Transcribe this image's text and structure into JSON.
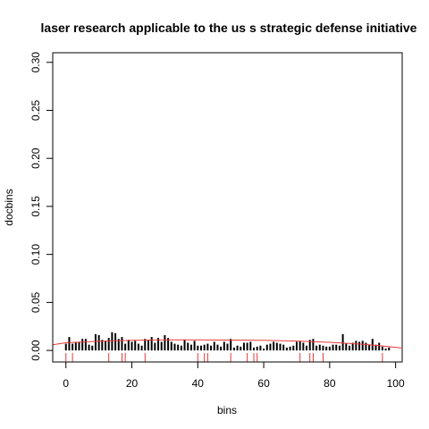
{
  "chart_data": {
    "type": "bar",
    "title": "laser research applicable to the us s strategic defense initiative",
    "xlabel": "bins",
    "ylabel": "docbins",
    "xlim": [
      -4,
      102
    ],
    "ylim": [
      -0.012,
      0.31
    ],
    "x_ticks": [
      0,
      20,
      40,
      60,
      80,
      100
    ],
    "y_ticks": [
      0.0,
      0.05,
      0.1,
      0.15,
      0.2,
      0.25,
      0.3
    ],
    "x_tick_labels": [
      "0",
      "20",
      "40",
      "60",
      "80",
      "100"
    ],
    "y_tick_labels": [
      "0.00",
      "0.05",
      "0.10",
      "0.15",
      "0.20",
      "0.25",
      "0.30"
    ],
    "series": [
      {
        "style": "histogram-bars",
        "color": "#000000",
        "x": [
          0,
          1,
          2,
          3,
          4,
          5,
          6,
          7,
          8,
          9,
          10,
          11,
          12,
          13,
          14,
          15,
          16,
          17,
          18,
          19,
          20,
          21,
          22,
          23,
          24,
          25,
          26,
          27,
          28,
          29,
          30,
          31,
          32,
          33,
          34,
          35,
          36,
          37,
          38,
          39,
          40,
          41,
          42,
          43,
          44,
          45,
          46,
          47,
          48,
          49,
          50,
          51,
          52,
          53,
          54,
          55,
          56,
          57,
          58,
          59,
          60,
          61,
          62,
          63,
          64,
          65,
          66,
          67,
          68,
          69,
          70,
          71,
          72,
          73,
          74,
          75,
          76,
          77,
          78,
          79,
          80,
          81,
          82,
          83,
          84,
          85,
          86,
          87,
          88,
          89,
          90,
          91,
          92,
          93,
          94,
          95,
          96,
          97,
          98
        ],
        "values": [
          0.007,
          0.014,
          0.007,
          0.008,
          0.009,
          0.012,
          0.012,
          0.006,
          0.005,
          0.017,
          0.016,
          0.011,
          0.01,
          0.013,
          0.019,
          0.018,
          0.012,
          0.014,
          0.007,
          0.011,
          0.009,
          0.01,
          0.007,
          0.005,
          0.012,
          0.011,
          0.014,
          0.008,
          0.013,
          0.009,
          0.016,
          0.013,
          0.009,
          0.007,
          0.006,
          0.005,
          0.011,
          0.008,
          0.006,
          0.01,
          0.005,
          0.005,
          0.006,
          0.007,
          0.005,
          0.009,
          0.006,
          0.004,
          0.009,
          0.007,
          0.012,
          0.003,
          0.005,
          0.004,
          0.008,
          0.008,
          0.009,
          0.003,
          0.004,
          0.005,
          0.002,
          0.006,
          0.007,
          0.009,
          0.008,
          0.007,
          0.006,
          0.003,
          0.004,
          0.005,
          0.009,
          0.01,
          0.008,
          0.005,
          0.011,
          0.012,
          0.005,
          0.006,
          0.005,
          0.004,
          0.004,
          0.006,
          0.006,
          0.005,
          0.017,
          0.007,
          0.005,
          0.008,
          0.01,
          0.009,
          0.01,
          0.008,
          0.006,
          0.012,
          0.006,
          0.008,
          0.004,
          0.002,
          0.003
        ]
      },
      {
        "style": "smooth-line",
        "color": "#e8393a",
        "x": [
          -4,
          0,
          10,
          20,
          30,
          40,
          50,
          60,
          70,
          80,
          90,
          95,
          102
        ],
        "values": [
          0.006,
          0.008,
          0.0095,
          0.0105,
          0.011,
          0.011,
          0.0108,
          0.0105,
          0.0098,
          0.0085,
          0.0065,
          0.005,
          0.0025
        ]
      },
      {
        "style": "rug",
        "color": "#e8393a",
        "x": [
          0,
          2,
          13,
          17,
          18,
          24,
          40,
          42,
          43,
          50,
          55,
          57,
          58,
          71,
          74,
          75,
          78,
          96
        ]
      }
    ],
    "grid": false,
    "legend": "none",
    "axis_color": "#000000"
  }
}
